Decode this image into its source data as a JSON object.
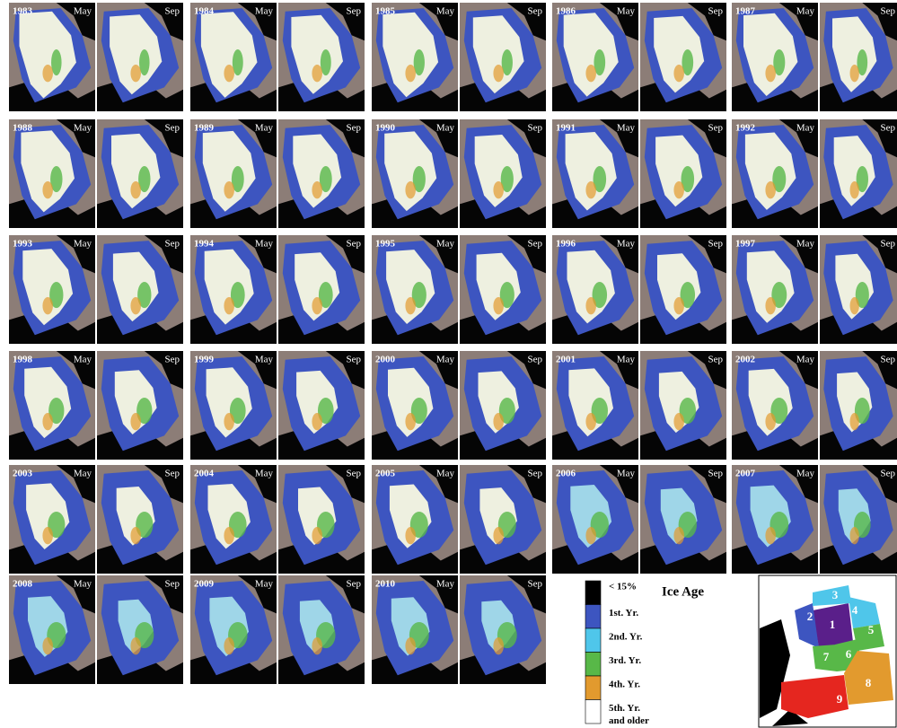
{
  "panels": [
    {
      "year": "1983",
      "left": "May",
      "right": "Sep"
    },
    {
      "year": "1984",
      "left": "May",
      "right": "Sep"
    },
    {
      "year": "1985",
      "left": "May",
      "right": "Sep"
    },
    {
      "year": "1986",
      "left": "May",
      "right": "Sep"
    },
    {
      "year": "1987",
      "left": "May",
      "right": "Sep"
    },
    {
      "year": "1988",
      "left": "May",
      "right": "Sep"
    },
    {
      "year": "1989",
      "left": "May",
      "right": "Sep"
    },
    {
      "year": "1990",
      "left": "May",
      "right": "Sep"
    },
    {
      "year": "1991",
      "left": "May",
      "right": "Sep"
    },
    {
      "year": "1992",
      "left": "May",
      "right": "Sep"
    },
    {
      "year": "1993",
      "left": "May",
      "right": "Sep"
    },
    {
      "year": "1994",
      "left": "May",
      "right": "Sep"
    },
    {
      "year": "1995",
      "left": "May",
      "right": "Sep"
    },
    {
      "year": "1996",
      "left": "May",
      "right": "Sep"
    },
    {
      "year": "1997",
      "left": "May",
      "right": "Sep"
    },
    {
      "year": "1998",
      "left": "May",
      "right": "Sep"
    },
    {
      "year": "1999",
      "left": "May",
      "right": "Sep"
    },
    {
      "year": "2000",
      "left": "May",
      "right": "Sep"
    },
    {
      "year": "2001",
      "left": "May",
      "right": "Sep"
    },
    {
      "year": "2002",
      "left": "May",
      "right": "Sep"
    },
    {
      "year": "2003",
      "left": "May",
      "right": "Sep"
    },
    {
      "year": "2004",
      "left": "May",
      "right": "Sep"
    },
    {
      "year": "2005",
      "left": "May",
      "right": "Sep"
    },
    {
      "year": "2006",
      "left": "May",
      "right": "Sep"
    },
    {
      "year": "2007",
      "left": "May",
      "right": "Sep"
    },
    {
      "year": "2008",
      "left": "May",
      "right": "Sep"
    },
    {
      "year": "2009",
      "left": "May",
      "right": "Sep"
    },
    {
      "year": "2010",
      "left": "May",
      "right": "Sep"
    }
  ],
  "legend": {
    "title": "Ice Age",
    "items": [
      {
        "label": "< 15%",
        "color": "#000000"
      },
      {
        "label": "1st. Yr.",
        "color": "#3d55c0"
      },
      {
        "label": "2nd. Yr.",
        "color": "#4fc6ea"
      },
      {
        "label": "3rd. Yr.",
        "color": "#58b848"
      },
      {
        "label": "4th. Yr.",
        "color": "#e29a2e"
      },
      {
        "label": "5th. Yr.",
        "label2": "and older",
        "color": "#ffffff"
      }
    ]
  },
  "regions": [
    "1",
    "2",
    "3",
    "4",
    "5",
    "6",
    "7",
    "8",
    "9"
  ]
}
